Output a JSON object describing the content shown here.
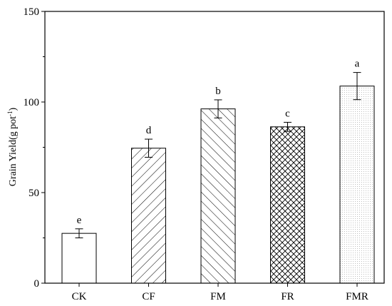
{
  "chart_data": {
    "type": "bar",
    "categories": [
      "CK",
      "CF",
      "FM",
      "FR",
      "FMR"
    ],
    "values": [
      27.5,
      74.5,
      96.2,
      86.3,
      108.8
    ],
    "errors": [
      2.5,
      5.0,
      5.0,
      2.5,
      7.5
    ],
    "significance": [
      "e",
      "d",
      "b",
      "c",
      "a"
    ],
    "patterns": [
      "none",
      "diag-right",
      "diag-left",
      "crosshatch",
      "dots"
    ],
    "ylabel_text": "Grain Yield(g pot",
    "ylabel_sup": "-1",
    "ylabel_close": ")",
    "xlabel": "",
    "ylim": [
      0,
      150
    ],
    "yticks": [
      0,
      50,
      100,
      150
    ],
    "grid": false,
    "bar_fill": "#ffffff",
    "line_color": "#000000",
    "dot_color": "#bdbdbd"
  }
}
